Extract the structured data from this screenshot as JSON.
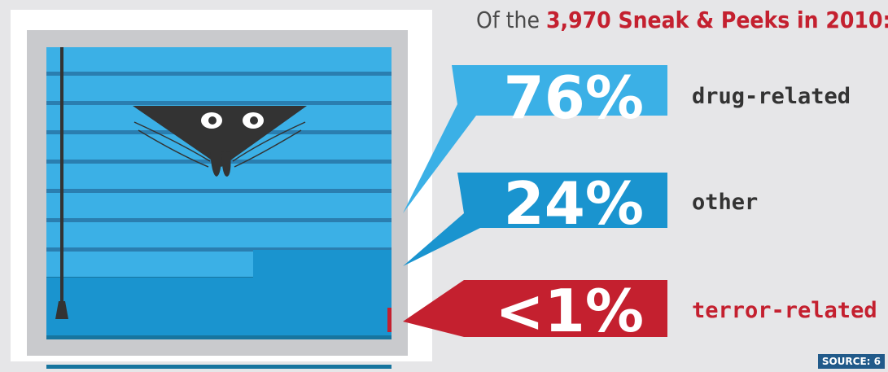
{
  "headline": {
    "prefix": "Of the ",
    "highlight": "3,970 Sneak & Peeks in 2010:"
  },
  "chart_data": {
    "type": "bar",
    "title": "Of the 3,970 Sneak & Peeks in 2010:",
    "categories": [
      "drug-related",
      "other",
      "terror-related"
    ],
    "values": [
      76,
      24,
      1
    ],
    "value_labels": [
      "76%",
      "24%",
      "<1%"
    ],
    "unit": "%",
    "colors": [
      "#3bb0e6",
      "#1a94cf",
      "#c4202f"
    ],
    "label_colors": [
      "#333333",
      "#333333",
      "#c4202f"
    ]
  },
  "source": "SOURCE: 6",
  "colors": {
    "background": "#e6e6e8",
    "frame": "#ffffff",
    "window_inner": "#c9cacd",
    "blind_light": "#3bb0e6",
    "blind_line": "#2a7eb0",
    "blind_dark": "#1a94cf",
    "terror": "#c4202f",
    "face": "#333333"
  }
}
